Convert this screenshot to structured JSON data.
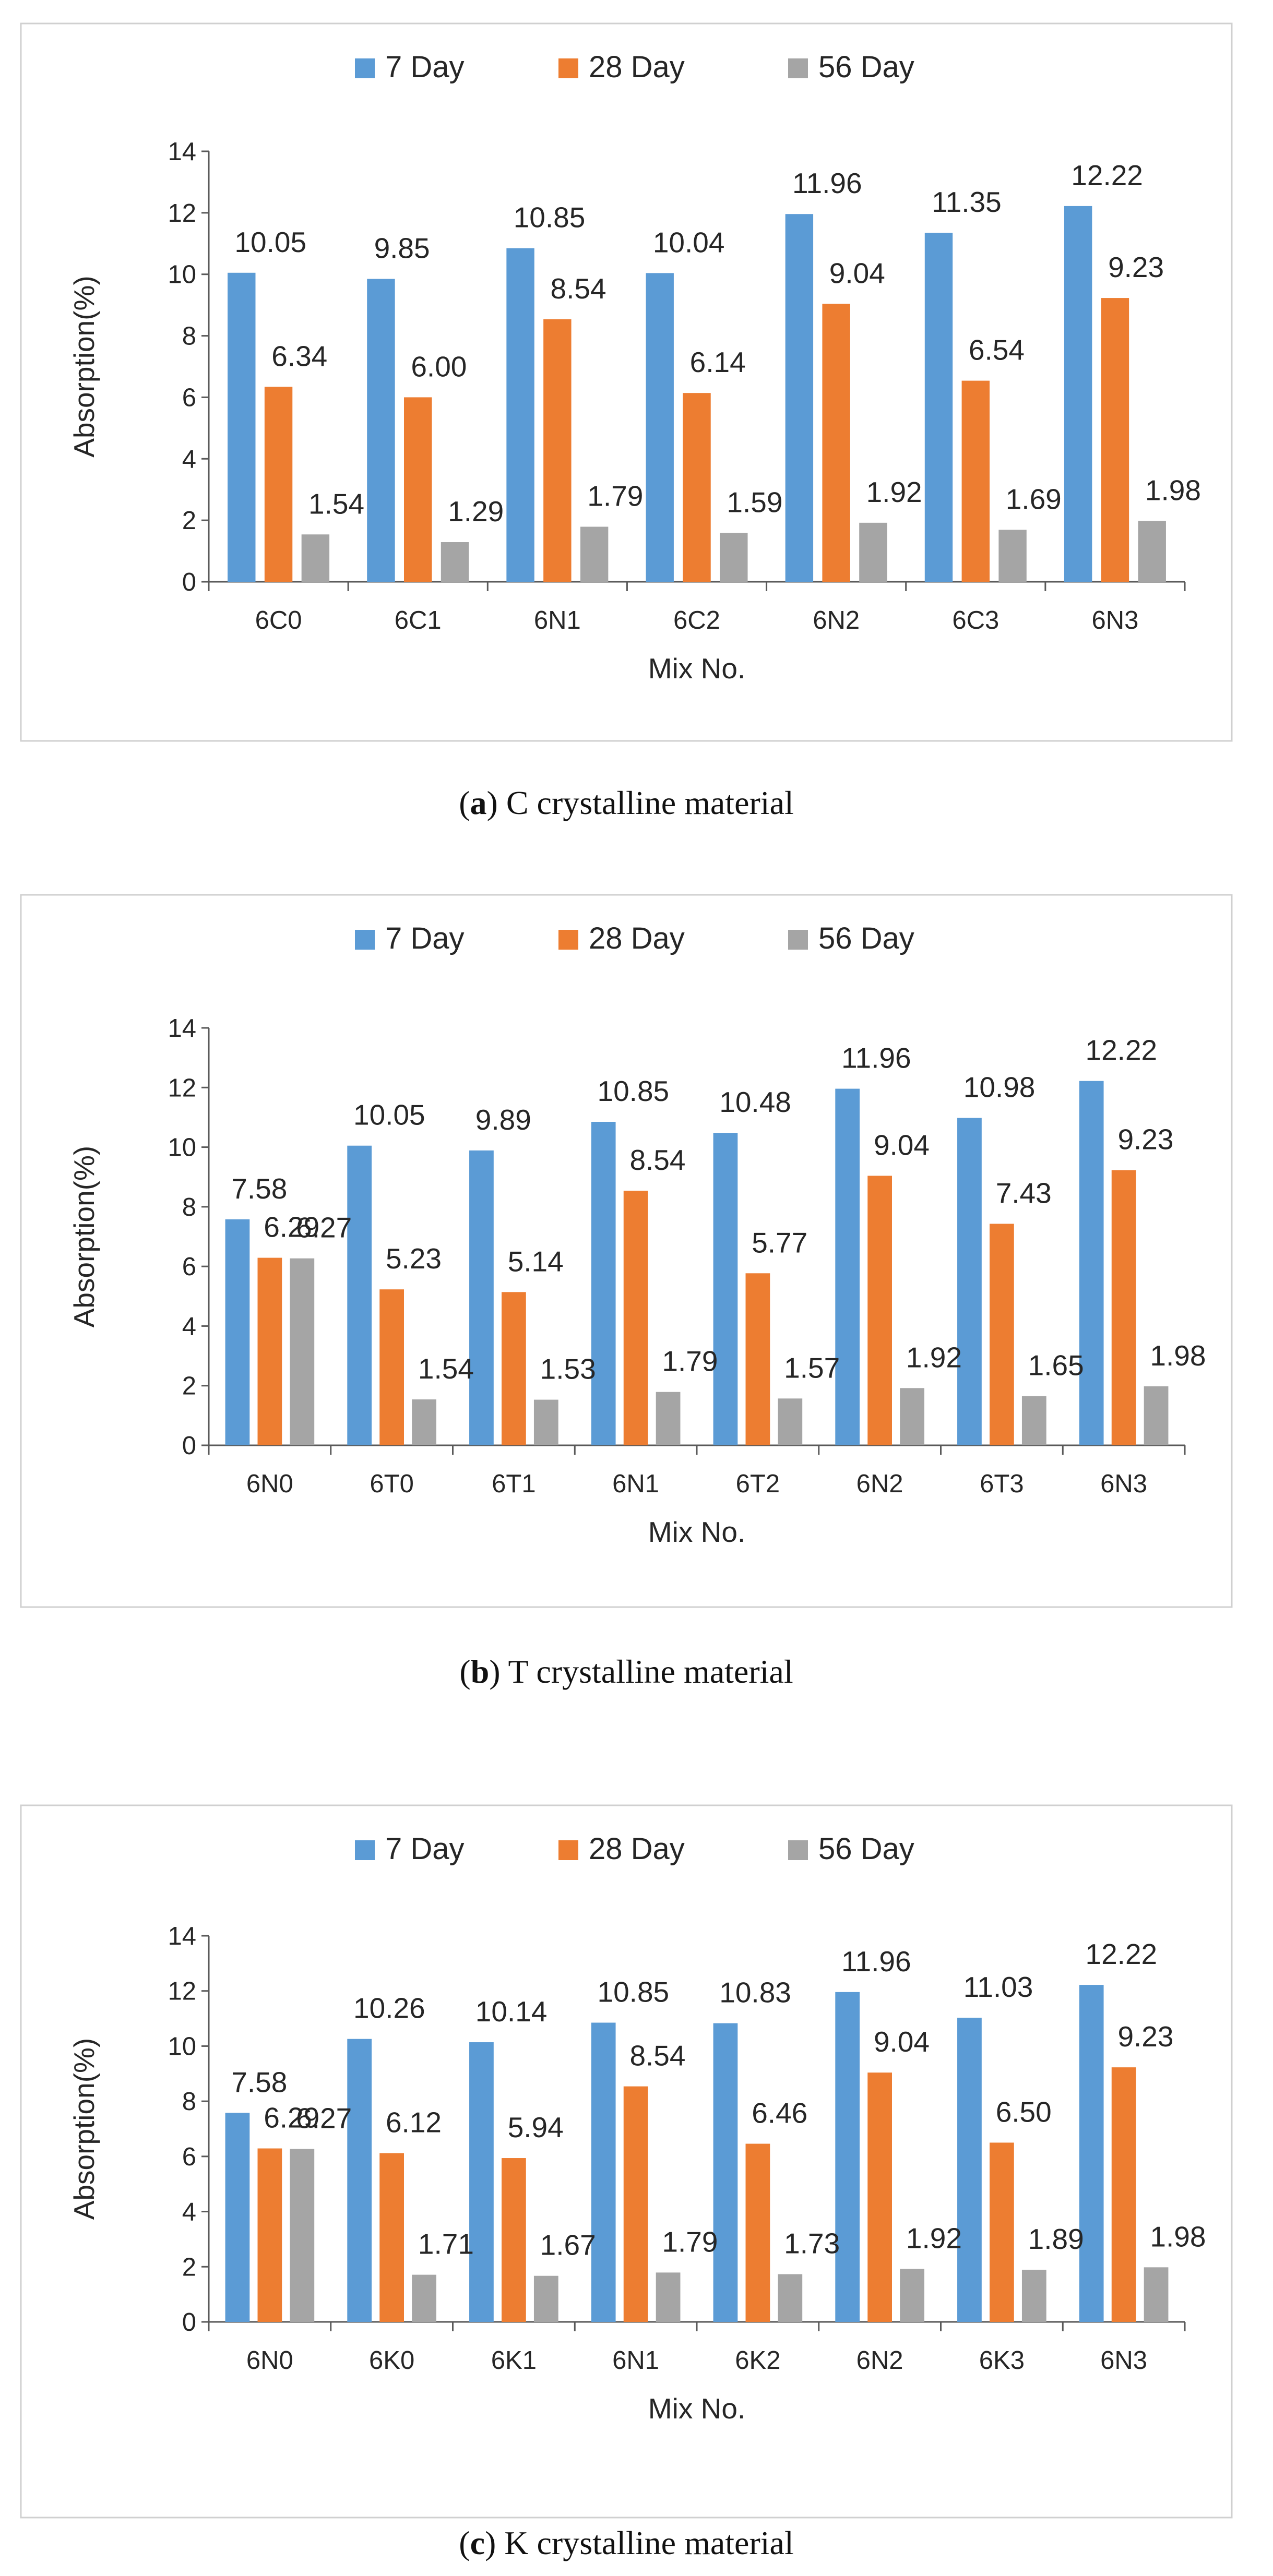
{
  "colors": {
    "7 Day": "#5b9bd5",
    "28 Day": "#ed7d31",
    "56 Day": "#a5a5a5",
    "axis": "#595959",
    "frame": "#d0d0d0"
  },
  "legend_position": "top",
  "chart_data": [
    {
      "type": "bar",
      "caption_label": "a",
      "caption_text": "C crystalline material",
      "categories": [
        "6C0",
        "6C1",
        "6N1",
        "6C2",
        "6N2",
        "6C3",
        "6N3"
      ],
      "series": [
        {
          "name": "7 Day",
          "values": [
            10.05,
            9.85,
            10.85,
            10.04,
            11.96,
            11.35,
            12.22
          ]
        },
        {
          "name": "28 Day",
          "values": [
            6.34,
            6.0,
            8.54,
            6.14,
            9.04,
            6.54,
            9.23
          ]
        },
        {
          "name": "56 Day",
          "values": [
            1.54,
            1.29,
            1.79,
            1.59,
            1.92,
            1.69,
            1.98
          ]
        }
      ],
      "labels": [
        [
          "10.05",
          "9.85",
          "10.85",
          "10.04",
          "11.96",
          "11.35",
          "12.22"
        ],
        [
          "6.34",
          "6.00",
          "8.54",
          "6.14",
          "9.04",
          "6.54",
          "9.23"
        ],
        [
          "1.54",
          "1.29",
          "1.79",
          "1.59",
          "1.92",
          "1.69",
          "1.98"
        ]
      ],
      "xlabel": "Mix No.",
      "ylabel": "Absorption(%)",
      "ylim": [
        0,
        14
      ],
      "yticks": [
        "0",
        "2",
        "4",
        "6",
        "8",
        "10",
        "12",
        "14"
      ],
      "grid": false
    },
    {
      "type": "bar",
      "caption_label": "b",
      "caption_text": "T crystalline material",
      "categories": [
        "6N0",
        "6T0",
        "6T1",
        "6N1",
        "6T2",
        "6N2",
        "6T3",
        "6N3"
      ],
      "series": [
        {
          "name": "7 Day",
          "values": [
            7.58,
            10.05,
            9.89,
            10.85,
            10.48,
            11.96,
            10.98,
            12.22
          ]
        },
        {
          "name": "28 Day",
          "values": [
            6.29,
            5.23,
            5.14,
            8.54,
            5.77,
            9.04,
            7.43,
            9.23
          ]
        },
        {
          "name": "56 Day",
          "values": [
            6.27,
            1.54,
            1.53,
            1.79,
            1.57,
            1.92,
            1.65,
            1.98
          ]
        }
      ],
      "labels": [
        [
          "7.58",
          "10.05",
          "9.89",
          "10.85",
          "10.48",
          "11.96",
          "10.98",
          "12.22"
        ],
        [
          "6.29",
          "5.23",
          "5.14",
          "8.54",
          "5.77",
          "9.04",
          "7.43",
          "9.23"
        ],
        [
          "6.27",
          "1.54",
          "1.53",
          "1.79",
          "1.57",
          "1.92",
          "1.65",
          "1.98"
        ]
      ],
      "xlabel": "Mix No.",
      "ylabel": "Absorption(%)",
      "ylim": [
        0,
        14
      ],
      "yticks": [
        "0",
        "2",
        "4",
        "6",
        "8",
        "10",
        "12",
        "14"
      ],
      "grid": false
    },
    {
      "type": "bar",
      "caption_label": "c",
      "caption_text": "K crystalline material",
      "categories": [
        "6N0",
        "6K0",
        "6K1",
        "6N1",
        "6K2",
        "6N2",
        "6K3",
        "6N3"
      ],
      "series": [
        {
          "name": "7 Day",
          "values": [
            7.58,
            10.26,
            10.14,
            10.85,
            10.83,
            11.96,
            11.03,
            12.22
          ]
        },
        {
          "name": "28 Day",
          "values": [
            6.29,
            6.12,
            5.94,
            8.54,
            6.46,
            9.04,
            6.5,
            9.23
          ]
        },
        {
          "name": "56 Day",
          "values": [
            6.27,
            1.71,
            1.67,
            1.79,
            1.73,
            1.92,
            1.89,
            1.98
          ]
        }
      ],
      "labels": [
        [
          "7.58",
          "10.26",
          "10.14",
          "10.85",
          "10.83",
          "11.96",
          "11.03",
          "12.22"
        ],
        [
          "6.29",
          "6.12",
          "5.94",
          "8.54",
          "6.46",
          "9.04",
          "6.50",
          "9.23"
        ],
        [
          "6.27",
          "1.71",
          "1.67",
          "1.79",
          "1.73",
          "1.92",
          "1.89",
          "1.98"
        ]
      ],
      "xlabel": "Mix No.",
      "ylabel": "Absorption(%)",
      "ylim": [
        0,
        14
      ],
      "yticks": [
        "0",
        "2",
        "4",
        "6",
        "8",
        "10",
        "12",
        "14"
      ],
      "grid": false
    }
  ]
}
